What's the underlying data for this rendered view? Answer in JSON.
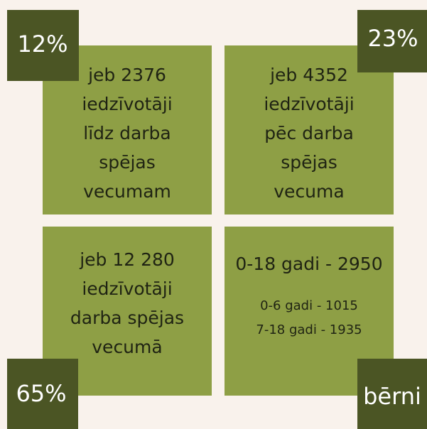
{
  "tiles": [
    {
      "badge": "12%",
      "lines": [
        "jeb 2376",
        "iedzīvotāji",
        "līdz darba",
        "spējas",
        "vecumam"
      ]
    },
    {
      "badge": "23%",
      "lines": [
        "jeb 4352",
        "iedzīvotāji",
        "pēc darba",
        "spējas",
        "vecuma"
      ]
    },
    {
      "badge": "65%",
      "lines": [
        "jeb 12 280",
        "iedzīvotāji",
        "darba spējas",
        "vecumā"
      ]
    },
    {
      "badge": "bērni",
      "lines": [
        "0-18 gadi - 2950"
      ],
      "sublines": [
        "0-6 gadi - 1015",
        "7-18 gadi - 1935"
      ]
    }
  ]
}
